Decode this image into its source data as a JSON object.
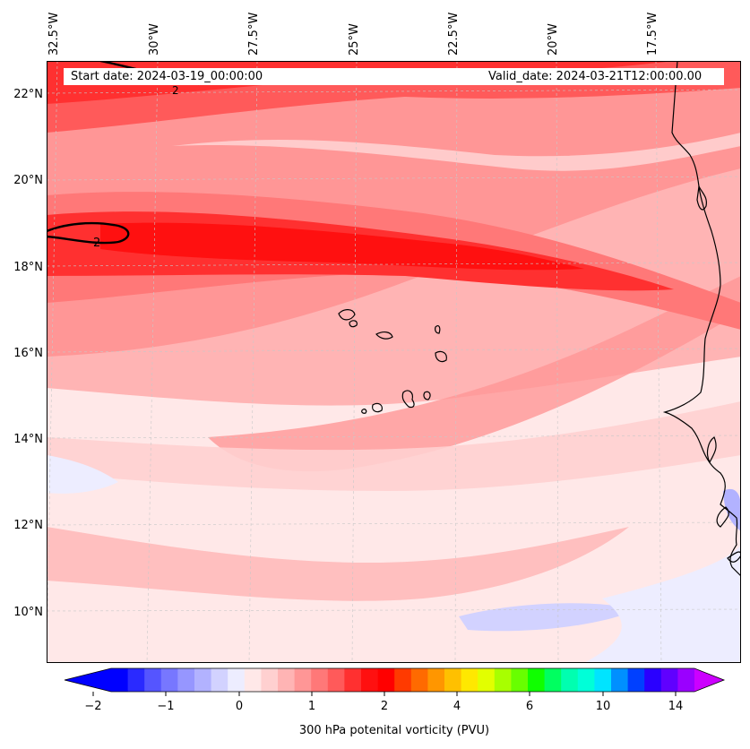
{
  "map": {
    "lon_labels": [
      "32.5°W",
      "30°W",
      "27.5°W",
      "25°W",
      "22.5°W",
      "20°W",
      "17.5°W"
    ],
    "lat_labels": [
      "22°N",
      "20°N",
      "18°N",
      "16°N",
      "14°N",
      "12°N",
      "10°N"
    ],
    "contour_labels": [
      "2",
      "2"
    ],
    "start_date": "Start date: 2024-03-19_00:00:00",
    "valid_date": "Valid_date: 2024-03-21T12:00:00.00",
    "coast_color": "#000000"
  },
  "colorbar": {
    "ticks": [
      "−2",
      "−1",
      "0",
      "1",
      "2",
      "4",
      "6",
      "10",
      "14"
    ],
    "label": "300 hPa potenital vorticity (PVU)",
    "colors": [
      "#0000ff",
      "#2a2aff",
      "#5555ff",
      "#7777ff",
      "#9696ff",
      "#b2b2ff",
      "#d2d2ff",
      "#ededff",
      "#ffe8e8",
      "#ffd0d0",
      "#ffb4b4",
      "#ff9696",
      "#ff7878",
      "#ff5a5a",
      "#ff3030",
      "#ff1010",
      "#ff0000",
      "#ff3a00",
      "#ff6a00",
      "#ff9600",
      "#ffc000",
      "#ffe800",
      "#e2ff00",
      "#a8ff00",
      "#68ff00",
      "#10ff00",
      "#00ff60",
      "#00ffb0",
      "#00ffd8",
      "#00e4ff",
      "#0090ff",
      "#0040ff",
      "#2a00ff",
      "#6000ff",
      "#9a00ff"
    ],
    "extend_low_color": "#0000ff",
    "extend_high_color": "#cc00ff"
  }
}
